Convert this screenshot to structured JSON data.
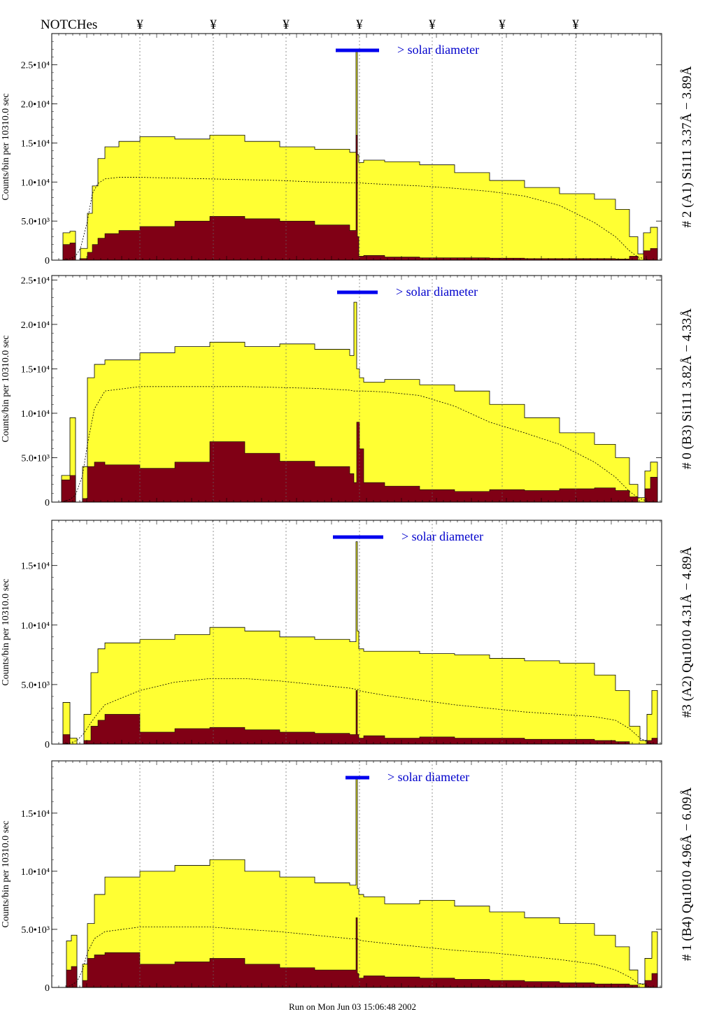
{
  "notches": {
    "label": "NOTCHes",
    "symbol": "¥",
    "x": [
      200,
      305,
      409,
      514,
      618,
      718,
      823
    ]
  },
  "footer": "Run on Mon Jun 03 15:06:48 2002",
  "colors": {
    "yellow": "#ffff33",
    "dark": "#800015",
    "bar": "#0000ee",
    "label_blue": "#0000cc"
  },
  "chart_data": [
    {
      "type": "area",
      "title": "# 2 (A1) Si111  3.37Å − 3.89Å",
      "ylabel": "Counts/bin per  10310.0 sec",
      "annotation": "> solar diameter",
      "ylim": [
        0,
        29000
      ],
      "yticks": [
        {
          "v": 0,
          "label": "0"
        },
        {
          "v": 5000,
          "label": "5.0•10³"
        },
        {
          "v": 10000,
          "label": "1.0•10⁴"
        },
        {
          "v": 15000,
          "label": "1.5•10⁴"
        },
        {
          "v": 20000,
          "label": "2.0•10⁴"
        },
        {
          "v": 25000,
          "label": "2.5•10⁴"
        }
      ],
      "x": [
        75,
        90,
        100,
        108,
        115,
        125,
        132,
        140,
        150,
        170,
        200,
        250,
        300,
        350,
        400,
        450,
        500,
        509,
        511,
        513,
        520,
        550,
        600,
        650,
        700,
        750,
        800,
        850,
        880,
        900,
        912,
        920,
        930,
        940
      ],
      "yellow": [
        0,
        3500,
        3700,
        0,
        1500,
        6000,
        9500,
        13000,
        14500,
        15200,
        15800,
        15500,
        16000,
        15200,
        14500,
        14200,
        13800,
        27000,
        13500,
        12500,
        12800,
        12600,
        12200,
        11200,
        10200,
        9300,
        8500,
        7800,
        6500,
        3000,
        800,
        3500,
        4200,
        0
      ],
      "dark": [
        0,
        2000,
        2200,
        0,
        200,
        1000,
        2000,
        2800,
        3400,
        3800,
        4300,
        5000,
        5600,
        5300,
        5000,
        4500,
        3800,
        16000,
        3000,
        500,
        600,
        400,
        300,
        300,
        250,
        200,
        200,
        200,
        150,
        500,
        0,
        1200,
        1500,
        0
      ],
      "dotted": [
        0,
        0,
        200,
        500,
        1500,
        5000,
        8500,
        9800,
        10400,
        10600,
        10600,
        10500,
        10400,
        10300,
        10200,
        10000,
        9900,
        9900,
        9900,
        9900,
        9850,
        9700,
        9500,
        9200,
        8800,
        8200,
        7000,
        4800,
        3000,
        1200,
        400,
        200,
        0,
        0
      ],
      "bar": [
        480,
        542
      ]
    },
    {
      "type": "area",
      "title": "# 0 (B3) Si111  3.82Å − 4.33Å",
      "ylabel": "Counts/bin per  10310.0 sec",
      "annotation": "> solar diameter",
      "ylim": [
        0,
        25500
      ],
      "yticks": [
        {
          "v": 0,
          "label": "0"
        },
        {
          "v": 5000,
          "label": "5.0•10³"
        },
        {
          "v": 10000,
          "label": "1.0•10⁴"
        },
        {
          "v": 15000,
          "label": "1.5•10⁴"
        },
        {
          "v": 20000,
          "label": "2.0•10⁴"
        },
        {
          "v": 25000,
          "label": "2.5•10⁴"
        }
      ],
      "x": [
        75,
        88,
        100,
        108,
        118,
        125,
        135,
        150,
        200,
        250,
        300,
        350,
        400,
        450,
        500,
        506,
        510,
        514,
        520,
        550,
        600,
        650,
        700,
        750,
        800,
        850,
        880,
        900,
        912,
        922,
        930,
        940
      ],
      "yellow": [
        0,
        3000,
        9500,
        0,
        4000,
        14000,
        15500,
        16000,
        16800,
        17500,
        18000,
        17500,
        17800,
        17200,
        16500,
        22500,
        15000,
        14000,
        13500,
        13800,
        13200,
        12500,
        11000,
        9500,
        7800,
        6500,
        5000,
        2000,
        500,
        3500,
        4500,
        0
      ],
      "dark": [
        0,
        2500,
        3000,
        0,
        400,
        4000,
        4500,
        4200,
        3800,
        4500,
        6800,
        5500,
        4600,
        4000,
        3200,
        2200,
        9000,
        6000,
        2200,
        1800,
        1400,
        1200,
        1400,
        1300,
        1500,
        1600,
        1300,
        600,
        0,
        1500,
        2800,
        0
      ],
      "dotted": [
        0,
        0,
        300,
        800,
        3000,
        6500,
        10500,
        12500,
        13000,
        13000,
        13000,
        13000,
        12900,
        12800,
        12600,
        12500,
        12500,
        12500,
        12500,
        12400,
        12000,
        10800,
        9000,
        7800,
        6500,
        4500,
        2800,
        1200,
        500,
        200,
        0,
        0
      ],
      "bar": [
        482,
        540
      ]
    },
    {
      "type": "area",
      "title": "#3 (A2) Qu1010  4.31Å − 4.89Å",
      "ylabel": "Counts/bin per  10310.0 sec",
      "annotation": "> solar diameter",
      "ylim": [
        0,
        18800
      ],
      "yticks": [
        {
          "v": 0,
          "label": "0"
        },
        {
          "v": 5000,
          "label": "5.0•10³"
        },
        {
          "v": 10000,
          "label": "1.0•10⁴"
        },
        {
          "v": 15000,
          "label": "1.5•10⁴"
        }
      ],
      "x": [
        75,
        90,
        100,
        110,
        120,
        130,
        140,
        150,
        200,
        250,
        300,
        350,
        400,
        450,
        500,
        509,
        511,
        513,
        520,
        550,
        600,
        650,
        700,
        750,
        800,
        850,
        880,
        900,
        915,
        925,
        932,
        940
      ],
      "yellow": [
        0,
        3500,
        500,
        0,
        2500,
        6000,
        8000,
        8500,
        8800,
        9200,
        9800,
        9500,
        9000,
        8800,
        8600,
        17000,
        9500,
        8000,
        7800,
        7800,
        7600,
        7500,
        7200,
        7000,
        6800,
        5800,
        4500,
        1500,
        300,
        2500,
        4500,
        0
      ],
      "dark": [
        0,
        800,
        0,
        0,
        300,
        1500,
        2000,
        2500,
        1000,
        1300,
        1400,
        1200,
        1000,
        900,
        800,
        4500,
        800,
        500,
        700,
        500,
        600,
        500,
        500,
        400,
        400,
        300,
        200,
        0,
        0,
        300,
        500,
        0
      ],
      "dotted": [
        0,
        0,
        100,
        300,
        900,
        1800,
        2600,
        3300,
        4500,
        5200,
        5500,
        5500,
        5300,
        5000,
        4700,
        4600,
        4600,
        4500,
        4400,
        4100,
        3700,
        3300,
        3000,
        2700,
        2500,
        2300,
        2000,
        1300,
        500,
        200,
        0,
        0
      ],
      "bar": [
        476,
        548
      ]
    },
    {
      "type": "area",
      "title": "# 1 (B4) Qu1010 4.96Å − 6.09Å",
      "ylabel": "Counts/bin per  10310.0 sec",
      "annotation": "> solar diameter",
      "ylim": [
        0,
        19500
      ],
      "yticks": [
        {
          "v": 0,
          "label": "0"
        },
        {
          "v": 5000,
          "label": "5.0•10³"
        },
        {
          "v": 10000,
          "label": "1.0•10⁴"
        },
        {
          "v": 15000,
          "label": "1.5•10⁴"
        }
      ],
      "x": [
        75,
        95,
        102,
        110,
        118,
        125,
        135,
        150,
        200,
        250,
        300,
        350,
        400,
        450,
        500,
        509,
        511,
        513,
        520,
        550,
        600,
        650,
        700,
        750,
        800,
        850,
        880,
        900,
        912,
        922,
        932,
        940
      ],
      "yellow": [
        0,
        4000,
        4500,
        0,
        2000,
        5500,
        8000,
        9500,
        10000,
        10500,
        11000,
        10000,
        9500,
        9000,
        8800,
        18000,
        8500,
        8000,
        7800,
        7200,
        7500,
        7000,
        6500,
        6000,
        5500,
        4500,
        3500,
        1500,
        300,
        2500,
        4800,
        0
      ],
      "dark": [
        0,
        1500,
        1800,
        0,
        600,
        2500,
        2800,
        3000,
        2000,
        2200,
        2500,
        2000,
        1700,
        1500,
        1500,
        6000,
        1200,
        800,
        1000,
        900,
        800,
        700,
        600,
        500,
        400,
        300,
        300,
        200,
        0,
        600,
        1200,
        0
      ],
      "dotted": [
        0,
        0,
        200,
        500,
        1500,
        3000,
        4200,
        4800,
        5200,
        5200,
        5200,
        5000,
        4800,
        4500,
        4200,
        4200,
        4200,
        4100,
        4000,
        3800,
        3500,
        3200,
        3000,
        2700,
        2400,
        2000,
        1500,
        900,
        400,
        200,
        0,
        0
      ],
      "bar": [
        494,
        528
      ]
    }
  ]
}
